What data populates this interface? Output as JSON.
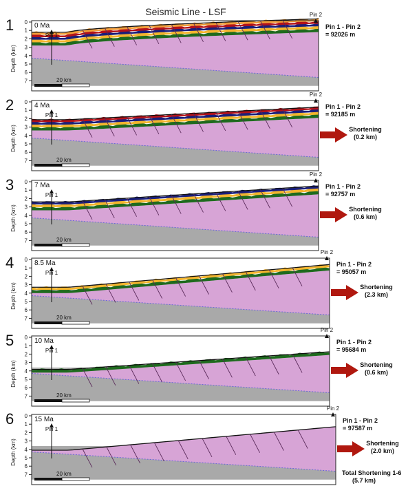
{
  "title": "Seismic Line - LSF",
  "colors": {
    "basement": "#a9a9a9",
    "sediment": "#d7a4d6",
    "green": "#1e6a1e",
    "yellow": "#f3b52e",
    "navy": "#1a1f7a",
    "red": "#b3121a",
    "orange": "#f29d3a",
    "arrow": "#b0180f",
    "fault": "#5a2a5a"
  },
  "axis": {
    "label": "Depth (km)",
    "ticks": [
      "0",
      "1",
      "2",
      "3",
      "4",
      "5",
      "6",
      "7"
    ]
  },
  "pins": {
    "left": "Pin 1",
    "right": "Pin 2"
  },
  "scale_bar": "20 km",
  "panels": [
    {
      "number": "1",
      "age": "0 Ma",
      "pin_label": "Pin 1 - Pin 2",
      "distance": "= 92026 m",
      "shortening": "",
      "layers": [
        "green",
        "yellow",
        "navy",
        "red",
        "orange"
      ]
    },
    {
      "number": "2",
      "age": "4 Ma",
      "pin_label": "Pin 1 - Pin 2",
      "distance": "= 92185 m",
      "shortening": "(0.2 km)",
      "layers": [
        "green",
        "yellow",
        "navy",
        "red"
      ]
    },
    {
      "number": "3",
      "age": "7 Ma",
      "pin_label": "Pin 1 - Pin 2",
      "distance": "= 92757 m",
      "shortening": "(0.6 km)",
      "layers": [
        "green",
        "yellow",
        "navy"
      ]
    },
    {
      "number": "4",
      "age": "8.5 Ma",
      "pin_label": "Pin 1 - Pin 2",
      "distance": "= 95057 m",
      "shortening": "(2.3 km)",
      "layers": [
        "green",
        "yellow"
      ]
    },
    {
      "number": "5",
      "age": "10 Ma",
      "pin_label": "Pin 1 - Pin 2",
      "distance": "= 95684 m",
      "shortening": "(0.6 km)",
      "layers": [
        "green"
      ]
    },
    {
      "number": "6",
      "age": "15 Ma",
      "pin_label": "Pin 1 - Pin 2",
      "distance": "= 97587 m",
      "shortening": "(2.0 km)",
      "layers": []
    }
  ],
  "shortening_word": "Shortening",
  "total": {
    "label": "Total Shortening 1-6",
    "value": "(5.7 km)"
  }
}
